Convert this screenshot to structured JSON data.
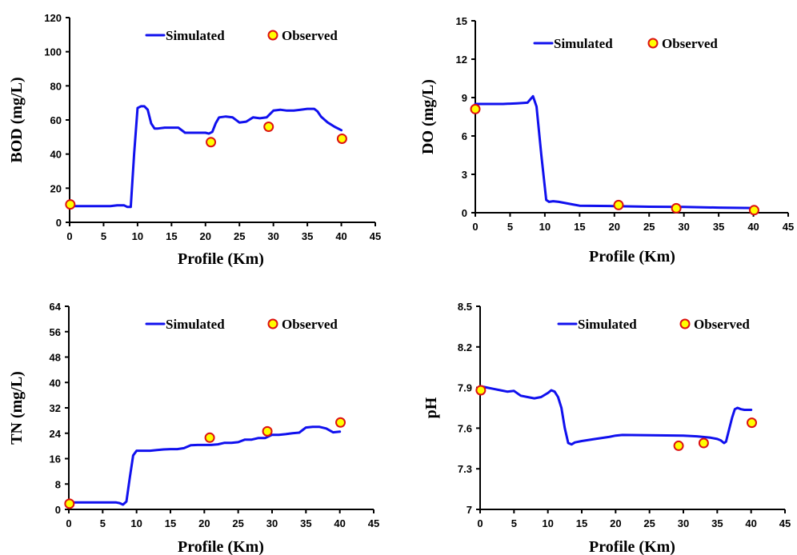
{
  "chart_data": [
    {
      "type": "line",
      "xlabel": "Profile (Km)",
      "ylabel": "BOD (mg/L)",
      "xlim": [
        0,
        45
      ],
      "ylim": [
        0,
        120
      ],
      "xticks": [
        0,
        5,
        10,
        15,
        20,
        25,
        30,
        35,
        40,
        45
      ],
      "yticks": [
        0,
        20,
        40,
        60,
        80,
        100,
        120
      ],
      "legend": [
        "Simulated",
        "Observed"
      ],
      "legend_position": "top",
      "grid": false,
      "series": [
        {
          "name": "Simulated",
          "kind": "line",
          "x": [
            0,
            2,
            4,
            6,
            7,
            8,
            8.5,
            9,
            9.5,
            10,
            10.5,
            11,
            11.5,
            12,
            12.5,
            13,
            14,
            15,
            16,
            17,
            18,
            19,
            20,
            20.5,
            21,
            21.5,
            22,
            23,
            24,
            25,
            26,
            27,
            28,
            29,
            30,
            31,
            32,
            33,
            34,
            35,
            36,
            36.5,
            37,
            38,
            39,
            40
          ],
          "y": [
            9.5,
            9.5,
            9.5,
            9.5,
            10,
            10,
            9,
            9,
            40,
            67,
            68,
            68,
            66,
            58,
            55,
            55,
            55.5,
            55.5,
            55.5,
            52.5,
            52.5,
            52.5,
            52.5,
            52,
            53,
            58,
            61.5,
            62,
            61.5,
            58.5,
            59,
            61.5,
            61,
            61.5,
            65.5,
            66,
            65.5,
            65.5,
            66,
            66.5,
            66.5,
            65,
            62,
            58.5,
            56,
            54
          ]
        },
        {
          "name": "Observed",
          "kind": "scatter",
          "x": [
            0.1,
            20.8,
            29.3,
            40.1
          ],
          "y": [
            10.5,
            47,
            56,
            49
          ]
        }
      ]
    },
    {
      "type": "line",
      "xlabel": "Profile (Km)",
      "ylabel": "DO (mg/L)",
      "xlim": [
        0,
        45
      ],
      "ylim": [
        0,
        15
      ],
      "xticks": [
        0,
        5,
        10,
        15,
        20,
        25,
        30,
        35,
        40,
        45
      ],
      "yticks": [
        0,
        3,
        6,
        9,
        12,
        15
      ],
      "legend": [
        "Simulated",
        "Observed"
      ],
      "legend_position": "top",
      "grid": false,
      "series": [
        {
          "name": "Simulated",
          "kind": "line",
          "x": [
            0,
            2,
            4,
            6,
            7.5,
            8.3,
            8.8,
            9.5,
            10.2,
            10.6,
            11.2,
            12,
            14,
            15,
            20,
            25,
            30,
            35,
            40
          ],
          "y": [
            8.5,
            8.5,
            8.5,
            8.55,
            8.6,
            9.1,
            8.3,
            4.5,
            1.0,
            0.85,
            0.9,
            0.85,
            0.65,
            0.55,
            0.52,
            0.47,
            0.45,
            0.4,
            0.37
          ]
        },
        {
          "name": "Observed",
          "kind": "scatter",
          "x": [
            0,
            20.6,
            28.9,
            40.1
          ],
          "y": [
            8.1,
            0.6,
            0.35,
            0.2
          ]
        }
      ]
    },
    {
      "type": "line",
      "xlabel": "Profile (Km)",
      "ylabel": "TN (mg/L)",
      "xlim": [
        0,
        45
      ],
      "ylim": [
        0,
        64
      ],
      "xticks": [
        0,
        5,
        10,
        15,
        20,
        25,
        30,
        35,
        40,
        45
      ],
      "yticks": [
        0,
        8,
        16,
        24,
        32,
        40,
        48,
        56,
        64
      ],
      "legend": [
        "Simulated",
        "Observed"
      ],
      "legend_position": "top",
      "grid": false,
      "series": [
        {
          "name": "Simulated",
          "kind": "line",
          "x": [
            0,
            2,
            4,
            6,
            7,
            7.5,
            8,
            8.5,
            9,
            9.5,
            10,
            11,
            12,
            13,
            14,
            15,
            16,
            17,
            18,
            19,
            20,
            21,
            22,
            23,
            24,
            25,
            26,
            27,
            28,
            29,
            30,
            31,
            32,
            33,
            34,
            35,
            36,
            37,
            38,
            39,
            40
          ],
          "y": [
            2.2,
            2.2,
            2.2,
            2.2,
            2.2,
            2.0,
            1.5,
            2.5,
            10,
            17,
            18.5,
            18.5,
            18.5,
            18.7,
            18.9,
            19,
            19,
            19.3,
            20.2,
            20.3,
            20.3,
            20.3,
            20.5,
            21,
            21,
            21.2,
            22,
            22,
            22.5,
            22.5,
            23.5,
            23.5,
            23.7,
            24,
            24.2,
            25.8,
            26,
            26,
            25.5,
            24.3,
            24.5
          ]
        },
        {
          "name": "Observed",
          "kind": "scatter",
          "x": [
            0.1,
            20.8,
            29.3,
            40.1
          ],
          "y": [
            1.8,
            22.6,
            24.6,
            27.4
          ]
        }
      ]
    },
    {
      "type": "line",
      "xlabel": "Profile (Km)",
      "ylabel": "pH",
      "xlim": [
        0,
        45
      ],
      "ylim": [
        7,
        8.5
      ],
      "xticks": [
        0,
        5,
        10,
        15,
        20,
        25,
        30,
        35,
        40,
        45
      ],
      "yticks": [
        7,
        7.3,
        7.6,
        7.9,
        8.2,
        8.5
      ],
      "ytick_labels": [
        "7",
        "7.3",
        "7.6",
        "7.9",
        "8.2",
        "8.5"
      ],
      "legend": [
        "Simulated",
        "Observed"
      ],
      "legend_position": "top",
      "grid": false,
      "series": [
        {
          "name": "Simulated",
          "kind": "line",
          "x": [
            0,
            1,
            2,
            3,
            4,
            5,
            6,
            7,
            8,
            9,
            10,
            10.5,
            11,
            11.5,
            12,
            12.5,
            13,
            13.5,
            14,
            15,
            17,
            19,
            20,
            21,
            25,
            30,
            32,
            34,
            35,
            35.5,
            36,
            36.3,
            36.7,
            37.2,
            37.6,
            38,
            38.5,
            39,
            40
          ],
          "y": [
            7.91,
            7.9,
            7.89,
            7.88,
            7.87,
            7.875,
            7.84,
            7.83,
            7.82,
            7.83,
            7.86,
            7.88,
            7.87,
            7.83,
            7.75,
            7.6,
            7.49,
            7.48,
            7.495,
            7.505,
            7.52,
            7.535,
            7.545,
            7.55,
            7.548,
            7.545,
            7.54,
            7.53,
            7.52,
            7.51,
            7.49,
            7.5,
            7.58,
            7.68,
            7.74,
            7.75,
            7.74,
            7.735,
            7.735
          ]
        },
        {
          "name": "Observed",
          "kind": "scatter",
          "x": [
            0.1,
            29.3,
            33.0,
            40.1
          ],
          "y": [
            7.88,
            7.47,
            7.49,
            7.64
          ]
        }
      ]
    }
  ]
}
